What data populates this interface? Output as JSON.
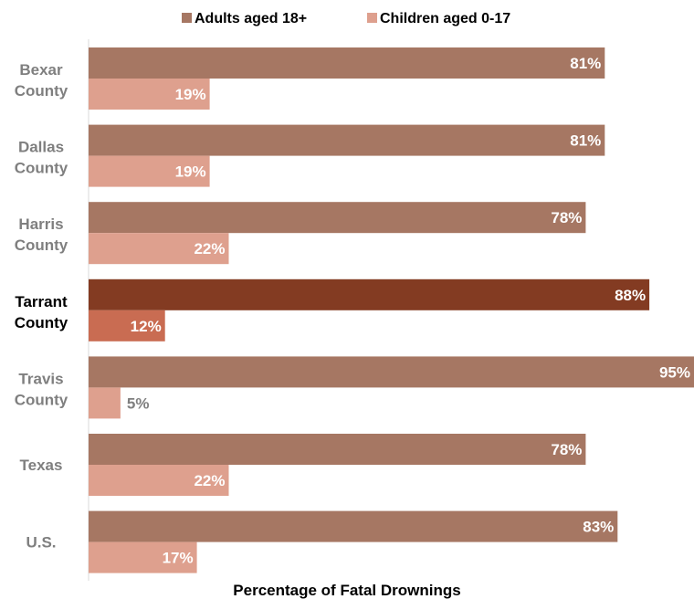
{
  "chart_data": {
    "type": "bar",
    "orientation": "horizontal",
    "categories": [
      "Bexar County",
      "Dallas County",
      "Harris County",
      "Tarrant County",
      "Travis County",
      "Texas",
      "U.S."
    ],
    "highlighted_category": "Tarrant County",
    "series": [
      {
        "name": "Adults aged 18+",
        "values": [
          81,
          81,
          78,
          88,
          95,
          78,
          83
        ],
        "labels": [
          "81%",
          "81%",
          "78%",
          "88%",
          "95%",
          "78%",
          "83%"
        ]
      },
      {
        "name": "Children aged 0-17",
        "values": [
          19,
          19,
          22,
          12,
          5,
          22,
          17
        ],
        "labels": [
          "19%",
          "19%",
          "22%",
          "12%",
          "5%",
          "22%",
          "17%"
        ]
      }
    ],
    "xlabel": "Percentage of Fatal Drownings",
    "xlim": [
      0,
      95
    ],
    "grid": false,
    "legend_position": "top",
    "colors": {
      "adults": "#a67763",
      "children": "#dea08e",
      "adults_highlight": "#833b22",
      "children_highlight": "#c96c52"
    }
  }
}
